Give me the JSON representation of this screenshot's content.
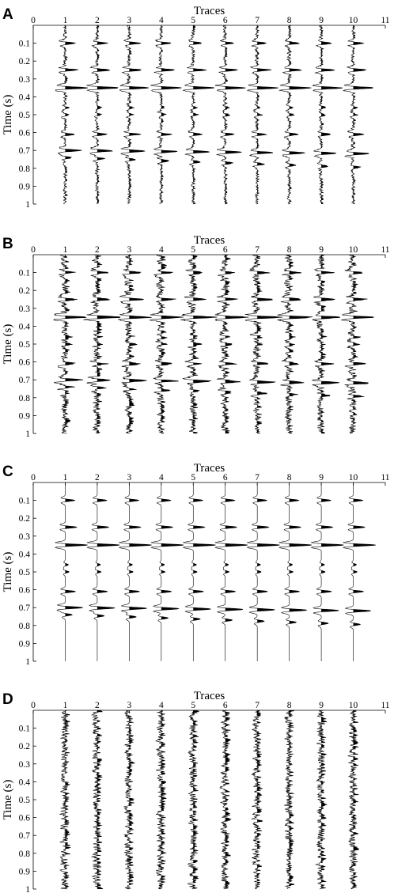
{
  "chart_data": [
    {
      "panel": "A",
      "type": "line",
      "subtype": "seismic-wiggle-traces",
      "xlabel": "Traces",
      "ylabel": "Time (s)",
      "xlim": [
        0,
        11
      ],
      "ylim": [
        0,
        1
      ],
      "y_inverted": true,
      "x_axis_position": "top",
      "x_ticks": [
        "0",
        "1",
        "2",
        "3",
        "4",
        "5",
        "6",
        "7",
        "8",
        "9",
        "10",
        "11"
      ],
      "y_ticks": [
        "0.1",
        "0.2",
        "0.3",
        "0.4",
        "0.5",
        "0.6",
        "0.7",
        "0.8",
        "0.9",
        "1"
      ],
      "traces": [
        1,
        2,
        3,
        4,
        5,
        6,
        7,
        8,
        9,
        10
      ],
      "noise_level": 0.055,
      "fill_positive": true,
      "events": [
        {
          "t": 0.1,
          "amp": 0.3,
          "dt": 0.0
        },
        {
          "t": 0.25,
          "amp": 0.38,
          "dt": 0.0
        },
        {
          "t": 0.35,
          "amp": 0.65,
          "dt": 0.0
        },
        {
          "t": 0.46,
          "amp": 0.1,
          "dt": 0.0
        },
        {
          "t": 0.5,
          "amp": 0.12,
          "dt": 0.0
        },
        {
          "t": 0.61,
          "amp": 0.3,
          "dt": 0.0
        },
        {
          "t": 0.7,
          "amp": 0.48,
          "dt": 0.002
        },
        {
          "t": 0.74,
          "amp": 0.2,
          "dt": 0.006
        }
      ]
    },
    {
      "panel": "B",
      "type": "line",
      "subtype": "seismic-wiggle-traces",
      "xlabel": "Traces",
      "ylabel": "Time (s)",
      "xlim": [
        0,
        11
      ],
      "ylim": [
        0,
        1
      ],
      "y_inverted": true,
      "x_axis_position": "top",
      "x_ticks": [
        "0",
        "1",
        "2",
        "3",
        "4",
        "5",
        "6",
        "7",
        "8",
        "9",
        "10",
        "11"
      ],
      "y_ticks": [
        "0.1",
        "0.2",
        "0.3",
        "0.4",
        "0.5",
        "0.6",
        "0.7",
        "0.8",
        "0.9",
        "1"
      ],
      "traces": [
        1,
        2,
        3,
        4,
        5,
        6,
        7,
        8,
        9,
        10
      ],
      "noise_level": 0.12,
      "fill_positive": true,
      "events": [
        {
          "t": 0.1,
          "amp": 0.32,
          "dt": 0.0
        },
        {
          "t": 0.25,
          "amp": 0.4,
          "dt": 0.0
        },
        {
          "t": 0.35,
          "amp": 0.7,
          "dt": 0.0
        },
        {
          "t": 0.46,
          "amp": 0.12,
          "dt": 0.0
        },
        {
          "t": 0.5,
          "amp": 0.14,
          "dt": 0.0
        },
        {
          "t": 0.61,
          "amp": 0.32,
          "dt": 0.0
        },
        {
          "t": 0.7,
          "amp": 0.5,
          "dt": 0.002
        },
        {
          "t": 0.74,
          "amp": 0.22,
          "dt": 0.006
        }
      ]
    },
    {
      "panel": "C",
      "type": "line",
      "subtype": "seismic-wiggle-traces",
      "xlabel": "Traces",
      "ylabel": "Time (s)",
      "xlim": [
        0,
        11
      ],
      "ylim": [
        0,
        1
      ],
      "y_inverted": true,
      "x_axis_position": "top",
      "x_ticks": [
        "0",
        "1",
        "2",
        "3",
        "4",
        "5",
        "6",
        "7",
        "8",
        "9",
        "10",
        "11"
      ],
      "y_ticks": [
        "0.1",
        "0.2",
        "0.3",
        "0.4",
        "0.5",
        "0.6",
        "0.7",
        "0.8",
        "0.9",
        "1"
      ],
      "traces": [
        1,
        2,
        3,
        4,
        5,
        6,
        7,
        8,
        9,
        10
      ],
      "noise_level": 0.0,
      "fill_positive": true,
      "events": [
        {
          "t": 0.1,
          "amp": 0.3,
          "dt": 0.0
        },
        {
          "t": 0.25,
          "amp": 0.36,
          "dt": 0.0
        },
        {
          "t": 0.35,
          "amp": 0.7,
          "dt": 0.0
        },
        {
          "t": 0.46,
          "amp": 0.1,
          "dt": 0.0
        },
        {
          "t": 0.5,
          "amp": 0.12,
          "dt": 0.0
        },
        {
          "t": 0.61,
          "amp": 0.32,
          "dt": 0.0
        },
        {
          "t": 0.7,
          "amp": 0.55,
          "dt": 0.002
        },
        {
          "t": 0.74,
          "amp": 0.22,
          "dt": 0.006
        }
      ]
    },
    {
      "panel": "D",
      "type": "line",
      "subtype": "seismic-wiggle-traces",
      "xlabel": "Traces",
      "ylabel": "Time (s)",
      "xlim": [
        0,
        11
      ],
      "ylim": [
        0,
        1
      ],
      "y_inverted": true,
      "x_axis_position": "top",
      "x_ticks": [
        "0",
        "1",
        "2",
        "3",
        "4",
        "5",
        "6",
        "7",
        "8",
        "9",
        "10",
        "11"
      ],
      "y_ticks": [
        "0.1",
        "0.2",
        "0.3",
        "0.4",
        "0.5",
        "0.6",
        "0.7",
        "0.8",
        "0.9",
        "1"
      ],
      "traces": [
        1,
        2,
        3,
        4,
        5,
        6,
        7,
        8,
        9,
        10
      ],
      "noise_level": 0.13,
      "fill_positive": true,
      "events": []
    }
  ],
  "colors": {
    "trace": "#000000",
    "fill": "#000000",
    "background": "#ffffff"
  }
}
